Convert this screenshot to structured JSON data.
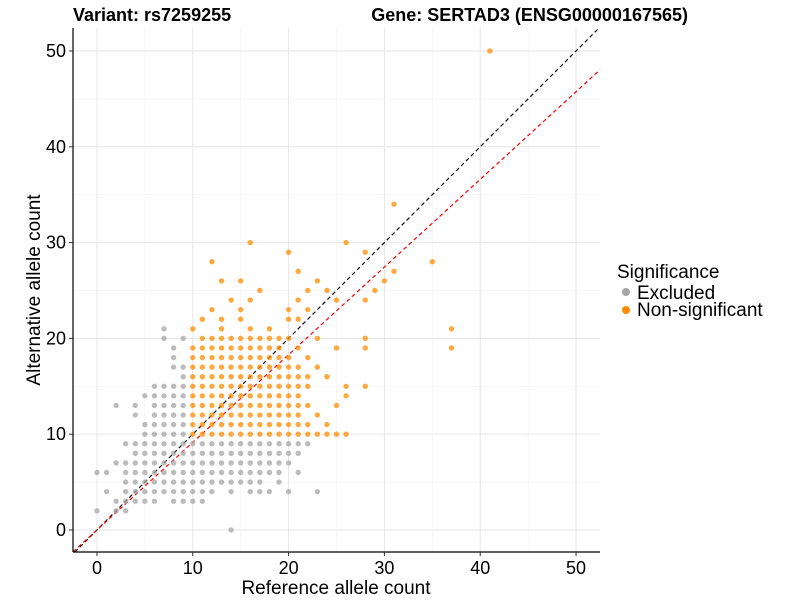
{
  "chart_data": {
    "type": "scatter",
    "title_left": "Variant: rs7259255",
    "title_right": "Gene: SERTAD3 (ENSG00000167565)",
    "xlabel": "Reference allele count",
    "ylabel": "Alternative allele count",
    "xlim": [
      -2.5,
      52.5
    ],
    "ylim": [
      -2.3,
      52.4
    ],
    "xticks": [
      "0",
      "10",
      "20",
      "30",
      "40",
      "50"
    ],
    "yticks": [
      "0",
      "10",
      "20",
      "30",
      "40",
      "50"
    ],
    "grid": true,
    "legend": {
      "title": "Significance",
      "placement": "right",
      "entries": [
        "Excluded",
        "Non-significant"
      ]
    },
    "reference_lines": [
      {
        "name": "identity",
        "slope": 1.0,
        "intercept": 0,
        "color": "#000000",
        "style": "dashed"
      },
      {
        "name": "fit",
        "slope": 0.915,
        "intercept": 0,
        "color": "#ff0000",
        "style": "dashed"
      }
    ],
    "series": [
      {
        "name": "Excluded",
        "color": "#a6a6a6",
        "rows": [
          {
            "y": 0,
            "x": [
              14
            ]
          },
          {
            "y": 2,
            "x": [
              0,
              2,
              3
            ]
          },
          {
            "y": 3,
            "x": [
              2,
              3,
              4,
              5,
              6,
              8,
              9,
              10,
              11
            ]
          },
          {
            "y": 4,
            "x": [
              1,
              3,
              4,
              5,
              6,
              7,
              8,
              9,
              10,
              11,
              12,
              14,
              16,
              17,
              18,
              20,
              23
            ]
          },
          {
            "y": 5,
            "x": [
              3,
              4,
              5,
              6,
              7,
              8,
              9,
              10,
              11,
              12,
              13,
              14,
              15,
              16,
              17,
              19
            ]
          },
          {
            "y": 6,
            "x": [
              0,
              1,
              3,
              4,
              5,
              6,
              7,
              8,
              9,
              10,
              11,
              12,
              13,
              14,
              15,
              16,
              17,
              18,
              19,
              21
            ]
          },
          {
            "y": 7,
            "x": [
              2,
              3,
              4,
              5,
              6,
              7,
              8,
              9,
              10,
              11,
              12,
              13,
              14,
              15,
              16,
              17,
              18,
              19,
              20
            ]
          },
          {
            "y": 8,
            "x": [
              4,
              5,
              6,
              7,
              8,
              9,
              10,
              11,
              12,
              13,
              14,
              15,
              16,
              17,
              18,
              19,
              20,
              21
            ]
          },
          {
            "y": 9,
            "x": [
              3,
              4,
              5,
              6,
              7,
              8,
              9,
              10,
              11,
              12,
              13,
              14,
              15,
              16,
              17,
              18,
              19,
              20,
              21,
              22
            ]
          },
          {
            "y": 10,
            "x": [
              5,
              6,
              7,
              8,
              9
            ]
          },
          {
            "y": 11,
            "x": [
              5,
              6,
              7,
              8,
              9
            ]
          },
          {
            "y": 12,
            "x": [
              4,
              6,
              7,
              8,
              9
            ]
          },
          {
            "y": 13,
            "x": [
              2,
              4,
              6,
              7,
              8,
              9
            ]
          },
          {
            "y": 14,
            "x": [
              5,
              6,
              7,
              8,
              9
            ]
          },
          {
            "y": 15,
            "x": [
              6,
              7,
              8,
              9
            ]
          },
          {
            "y": 16,
            "x": [
              9
            ]
          },
          {
            "y": 17,
            "x": [
              8,
              9
            ]
          },
          {
            "y": 18,
            "x": [
              8
            ]
          },
          {
            "y": 19,
            "x": [
              8
            ]
          },
          {
            "y": 20,
            "x": [
              7,
              9
            ]
          },
          {
            "y": 21,
            "x": [
              7
            ]
          }
        ]
      },
      {
        "name": "Non-significant",
        "color": "#ff8c00",
        "rows": [
          {
            "y": 10,
            "x": [
              10,
              11,
              12,
              13,
              14,
              15,
              16,
              17,
              18,
              19,
              20,
              21,
              22,
              23,
              24,
              25,
              26
            ]
          },
          {
            "y": 11,
            "x": [
              10,
              11,
              12,
              13,
              14,
              15,
              16,
              17,
              18,
              19,
              20,
              21,
              22,
              24
            ]
          },
          {
            "y": 12,
            "x": [
              10,
              11,
              12,
              13,
              14,
              15,
              16,
              17,
              18,
              19,
              20,
              21,
              23
            ]
          },
          {
            "y": 13,
            "x": [
              10,
              11,
              12,
              13,
              14,
              15,
              16,
              17,
              18,
              19,
              20,
              21,
              22,
              25
            ]
          },
          {
            "y": 14,
            "x": [
              10,
              11,
              12,
              13,
              14,
              15,
              16,
              17,
              18,
              19,
              20,
              21,
              26
            ]
          },
          {
            "y": 15,
            "x": [
              10,
              11,
              12,
              13,
              14,
              15,
              16,
              17,
              18,
              19,
              20,
              21,
              22,
              26,
              28
            ]
          },
          {
            "y": 16,
            "x": [
              10,
              11,
              12,
              13,
              14,
              15,
              16,
              17,
              18,
              19,
              20,
              21,
              22,
              24
            ]
          },
          {
            "y": 17,
            "x": [
              10,
              11,
              12,
              13,
              14,
              15,
              16,
              17,
              18,
              19,
              20,
              21,
              23
            ]
          },
          {
            "y": 18,
            "x": [
              10,
              11,
              12,
              13,
              14,
              15,
              16,
              17,
              18,
              19,
              20,
              22
            ]
          },
          {
            "y": 19,
            "x": [
              10,
              11,
              12,
              13,
              14,
              15,
              16,
              17,
              18,
              19,
              21,
              25,
              28,
              37
            ]
          },
          {
            "y": 20,
            "x": [
              11,
              12,
              13,
              14,
              15,
              16,
              17,
              18,
              19,
              20,
              23,
              28
            ]
          },
          {
            "y": 21,
            "x": [
              10,
              13,
              16,
              18,
              37
            ]
          },
          {
            "y": 22,
            "x": [
              11,
              13,
              15,
              20,
              21
            ]
          },
          {
            "y": 23,
            "x": [
              12,
              15,
              20,
              22
            ]
          },
          {
            "y": 24,
            "x": [
              14,
              16,
              21,
              25,
              28
            ]
          },
          {
            "y": 25,
            "x": [
              17,
              22,
              24,
              29
            ]
          },
          {
            "y": 26,
            "x": [
              13,
              15,
              23,
              30
            ]
          },
          {
            "y": 27,
            "x": [
              21,
              31
            ]
          },
          {
            "y": 28,
            "x": [
              12,
              35
            ]
          },
          {
            "y": 29,
            "x": [
              20,
              28
            ]
          },
          {
            "y": 30,
            "x": [
              16,
              26
            ]
          },
          {
            "y": 34,
            "x": [
              31
            ]
          },
          {
            "y": 50,
            "x": [
              41
            ]
          }
        ]
      }
    ]
  }
}
